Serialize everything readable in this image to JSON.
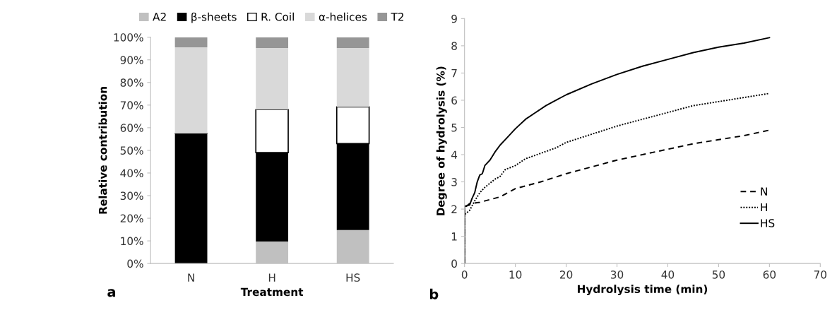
{
  "chart_data": [
    {
      "type": "bar",
      "stacked": true,
      "xlabel": "Treatment",
      "ylabel": "Relative contribution",
      "categories": [
        "N",
        "H",
        "HS"
      ],
      "series": [
        {
          "name": "A2",
          "color": "#c0c0c0",
          "values": [
            0,
            9.7,
            14.8
          ]
        },
        {
          "name": "β-sheets",
          "color": "#000000",
          "values": [
            57.5,
            39.3,
            38.2
          ]
        },
        {
          "name": "R. Coil",
          "color": "#ffffff",
          "values": [
            0,
            19,
            16.2
          ]
        },
        {
          "name": "α-helices",
          "color": "#d9d9d9",
          "values": [
            38,
            27.2,
            26
          ]
        },
        {
          "name": "T2",
          "color": "#969696",
          "values": [
            4.5,
            4.8,
            4.8
          ]
        }
      ],
      "ylim": [
        0,
        100
      ],
      "yticks": [
        {
          "value": 0,
          "label": "0%"
        },
        {
          "value": 10,
          "label": "10%"
        },
        {
          "value": 20,
          "label": "20%"
        },
        {
          "value": 30,
          "label": "30%"
        },
        {
          "value": 40,
          "label": "40%"
        },
        {
          "value": 50,
          "label": "50%"
        },
        {
          "value": 60,
          "label": "60%"
        },
        {
          "value": 70,
          "label": "70%"
        },
        {
          "value": 80,
          "label": "80%"
        },
        {
          "value": 90,
          "label": "90%"
        },
        {
          "value": 100,
          "label": "100%"
        }
      ],
      "legend": "top",
      "grid": false,
      "annotations": [
        "a"
      ]
    },
    {
      "type": "line",
      "xlabel": "Hydrolysis time (min)",
      "ylabel": "Degree of hydrolysis (%)",
      "series": [
        {
          "name": "N",
          "color": "#000000",
          "line_style": "dashed",
          "x": [
            0,
            0,
            1,
            3,
            5,
            7,
            10,
            12,
            15,
            20,
            25,
            30,
            35,
            40,
            45,
            50,
            55,
            60
          ],
          "values": [
            0,
            2.05,
            2.2,
            2.25,
            2.35,
            2.45,
            2.75,
            2.85,
            3.0,
            3.3,
            3.55,
            3.8,
            4.0,
            4.2,
            4.4,
            4.55,
            4.7,
            4.9
          ]
        },
        {
          "name": "H",
          "color": "#000000",
          "line_style": "dotted",
          "x": [
            0,
            0,
            1,
            2,
            3,
            4,
            5,
            6,
            7,
            8,
            10,
            12,
            15,
            18,
            20,
            25,
            30,
            35,
            40,
            45,
            50,
            55,
            60
          ],
          "values": [
            0,
            1.8,
            1.95,
            2.3,
            2.6,
            2.8,
            2.95,
            3.1,
            3.2,
            3.45,
            3.6,
            3.85,
            4.05,
            4.25,
            4.45,
            4.75,
            5.05,
            5.3,
            5.55,
            5.8,
            5.95,
            6.1,
            6.25
          ]
        },
        {
          "name": "HS",
          "color": "#000000",
          "line_style": "solid",
          "x": [
            0,
            0,
            1,
            1.5,
            2,
            2.5,
            3,
            3.5,
            4,
            5,
            6,
            7,
            8,
            9,
            10,
            12,
            14,
            16,
            18,
            20,
            25,
            30,
            35,
            40,
            45,
            50,
            55,
            60
          ],
          "values": [
            0,
            2.1,
            2.15,
            2.4,
            2.6,
            3.0,
            3.25,
            3.3,
            3.6,
            3.8,
            4.1,
            4.35,
            4.55,
            4.75,
            4.95,
            5.3,
            5.55,
            5.8,
            6.0,
            6.2,
            6.6,
            6.95,
            7.25,
            7.5,
            7.75,
            7.95,
            8.1,
            8.3
          ]
        }
      ],
      "xlim": [
        0,
        70
      ],
      "xticks": [
        0,
        10,
        20,
        30,
        40,
        50,
        60,
        70
      ],
      "ylim": [
        0,
        9
      ],
      "yticks": [
        0,
        1,
        2,
        3,
        4,
        5,
        6,
        7,
        8,
        9
      ],
      "legend": "bottom right",
      "grid": false,
      "annotations": [
        "b"
      ]
    }
  ]
}
